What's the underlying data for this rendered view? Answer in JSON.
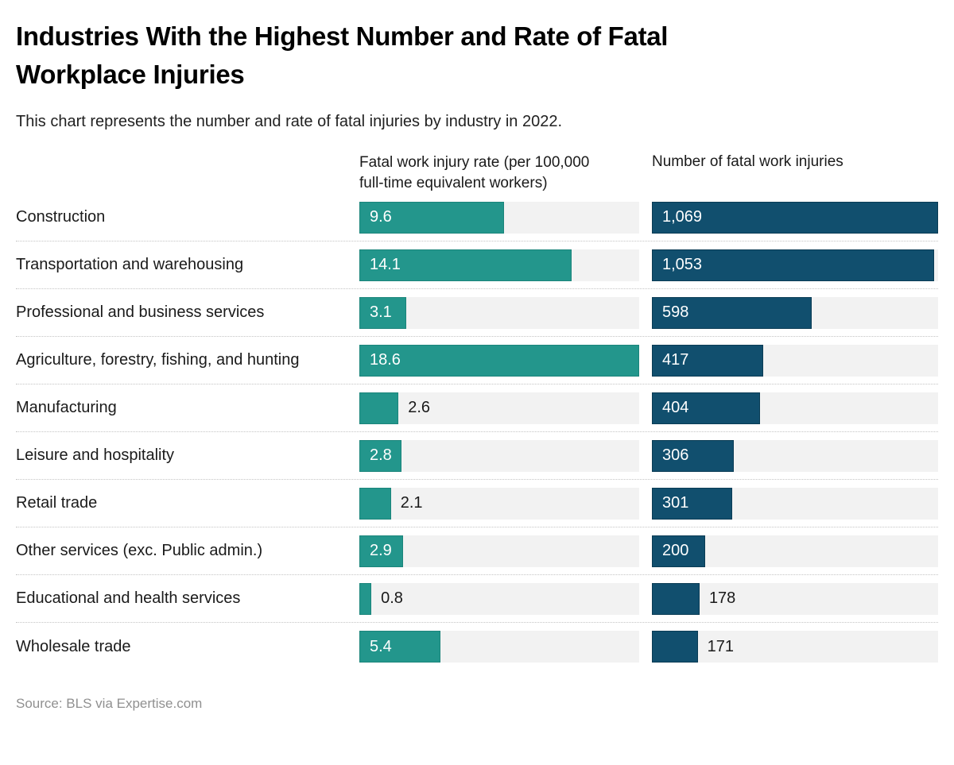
{
  "header": {
    "title_lines": [
      "Industries With the Highest Number and Rate of Fatal",
      "Workplace Injuries"
    ],
    "subtitle": "This chart represents the number and rate of fatal injuries by industry in 2022."
  },
  "columns": {
    "rate_header": "Fatal work injury rate (per 100,000 full-time equivalent workers)",
    "count_header": "Number of fatal work injuries"
  },
  "colors": {
    "rate_bar": "#23968c",
    "count_bar": "#114f6e",
    "track": "#f2f2f2"
  },
  "chart_data": {
    "type": "bar",
    "orientation": "horizontal",
    "title": "Industries With the Highest Number and Rate of Fatal Workplace Injuries",
    "subtitle": "This chart represents the number and rate of fatal injuries by industry in 2022.",
    "source": "Source: BLS via Expertise.com",
    "categories": [
      "Construction",
      "Transportation and warehousing",
      "Professional and business services",
      "Agriculture, forestry, fishing, and hunting",
      "Manufacturing",
      "Leisure and hospitality",
      "Retail trade",
      "Other services (exc. Public admin.)",
      "Educational and health services",
      "Wholesale trade"
    ],
    "series": [
      {
        "name": "Fatal work injury rate (per 100,000 full-time equivalent workers)",
        "values": [
          9.6,
          14.1,
          3.1,
          18.6,
          2.6,
          2.8,
          2.1,
          2.9,
          0.8,
          5.4
        ],
        "color": "#23968c",
        "xlim": [
          0,
          18.6
        ]
      },
      {
        "name": "Number of fatal work injuries",
        "values": [
          1069,
          1053,
          598,
          417,
          404,
          306,
          301,
          200,
          178,
          171
        ],
        "color": "#114f6e",
        "xlim": [
          0,
          1069
        ]
      }
    ],
    "value_labels": true,
    "gridlines": false,
    "legend_position": "column-headers"
  },
  "rows": [
    {
      "label": "Construction",
      "rate_value": "9.6",
      "rate_label_inside": true,
      "count_value": "1,069",
      "count_label_inside": true
    },
    {
      "label": "Transportation and warehousing",
      "rate_value": "14.1",
      "rate_label_inside": true,
      "count_value": "1,053",
      "count_label_inside": true
    },
    {
      "label": "Professional and business services",
      "rate_value": "3.1",
      "rate_label_inside": true,
      "count_value": "598",
      "count_label_inside": true
    },
    {
      "label": "Agriculture, forestry, fishing, and hunting",
      "rate_value": "18.6",
      "rate_label_inside": true,
      "count_value": "417",
      "count_label_inside": true
    },
    {
      "label": "Manufacturing",
      "rate_value": "2.6",
      "rate_label_inside": false,
      "count_value": "404",
      "count_label_inside": true
    },
    {
      "label": "Leisure and hospitality",
      "rate_value": "2.8",
      "rate_label_inside": true,
      "count_value": "306",
      "count_label_inside": true
    },
    {
      "label": "Retail trade",
      "rate_value": "2.1",
      "rate_label_inside": false,
      "count_value": "301",
      "count_label_inside": true
    },
    {
      "label": "Other services (exc. Public admin.)",
      "rate_value": "2.9",
      "rate_label_inside": true,
      "count_value": "200",
      "count_label_inside": true
    },
    {
      "label": "Educational and health services",
      "rate_value": "0.8",
      "rate_label_inside": false,
      "count_value": "178",
      "count_label_inside": false
    },
    {
      "label": "Wholesale trade",
      "rate_value": "5.4",
      "rate_label_inside": true,
      "count_value": "171",
      "count_label_inside": false
    }
  ],
  "footer": {
    "source": "Source: BLS via Expertise.com"
  }
}
